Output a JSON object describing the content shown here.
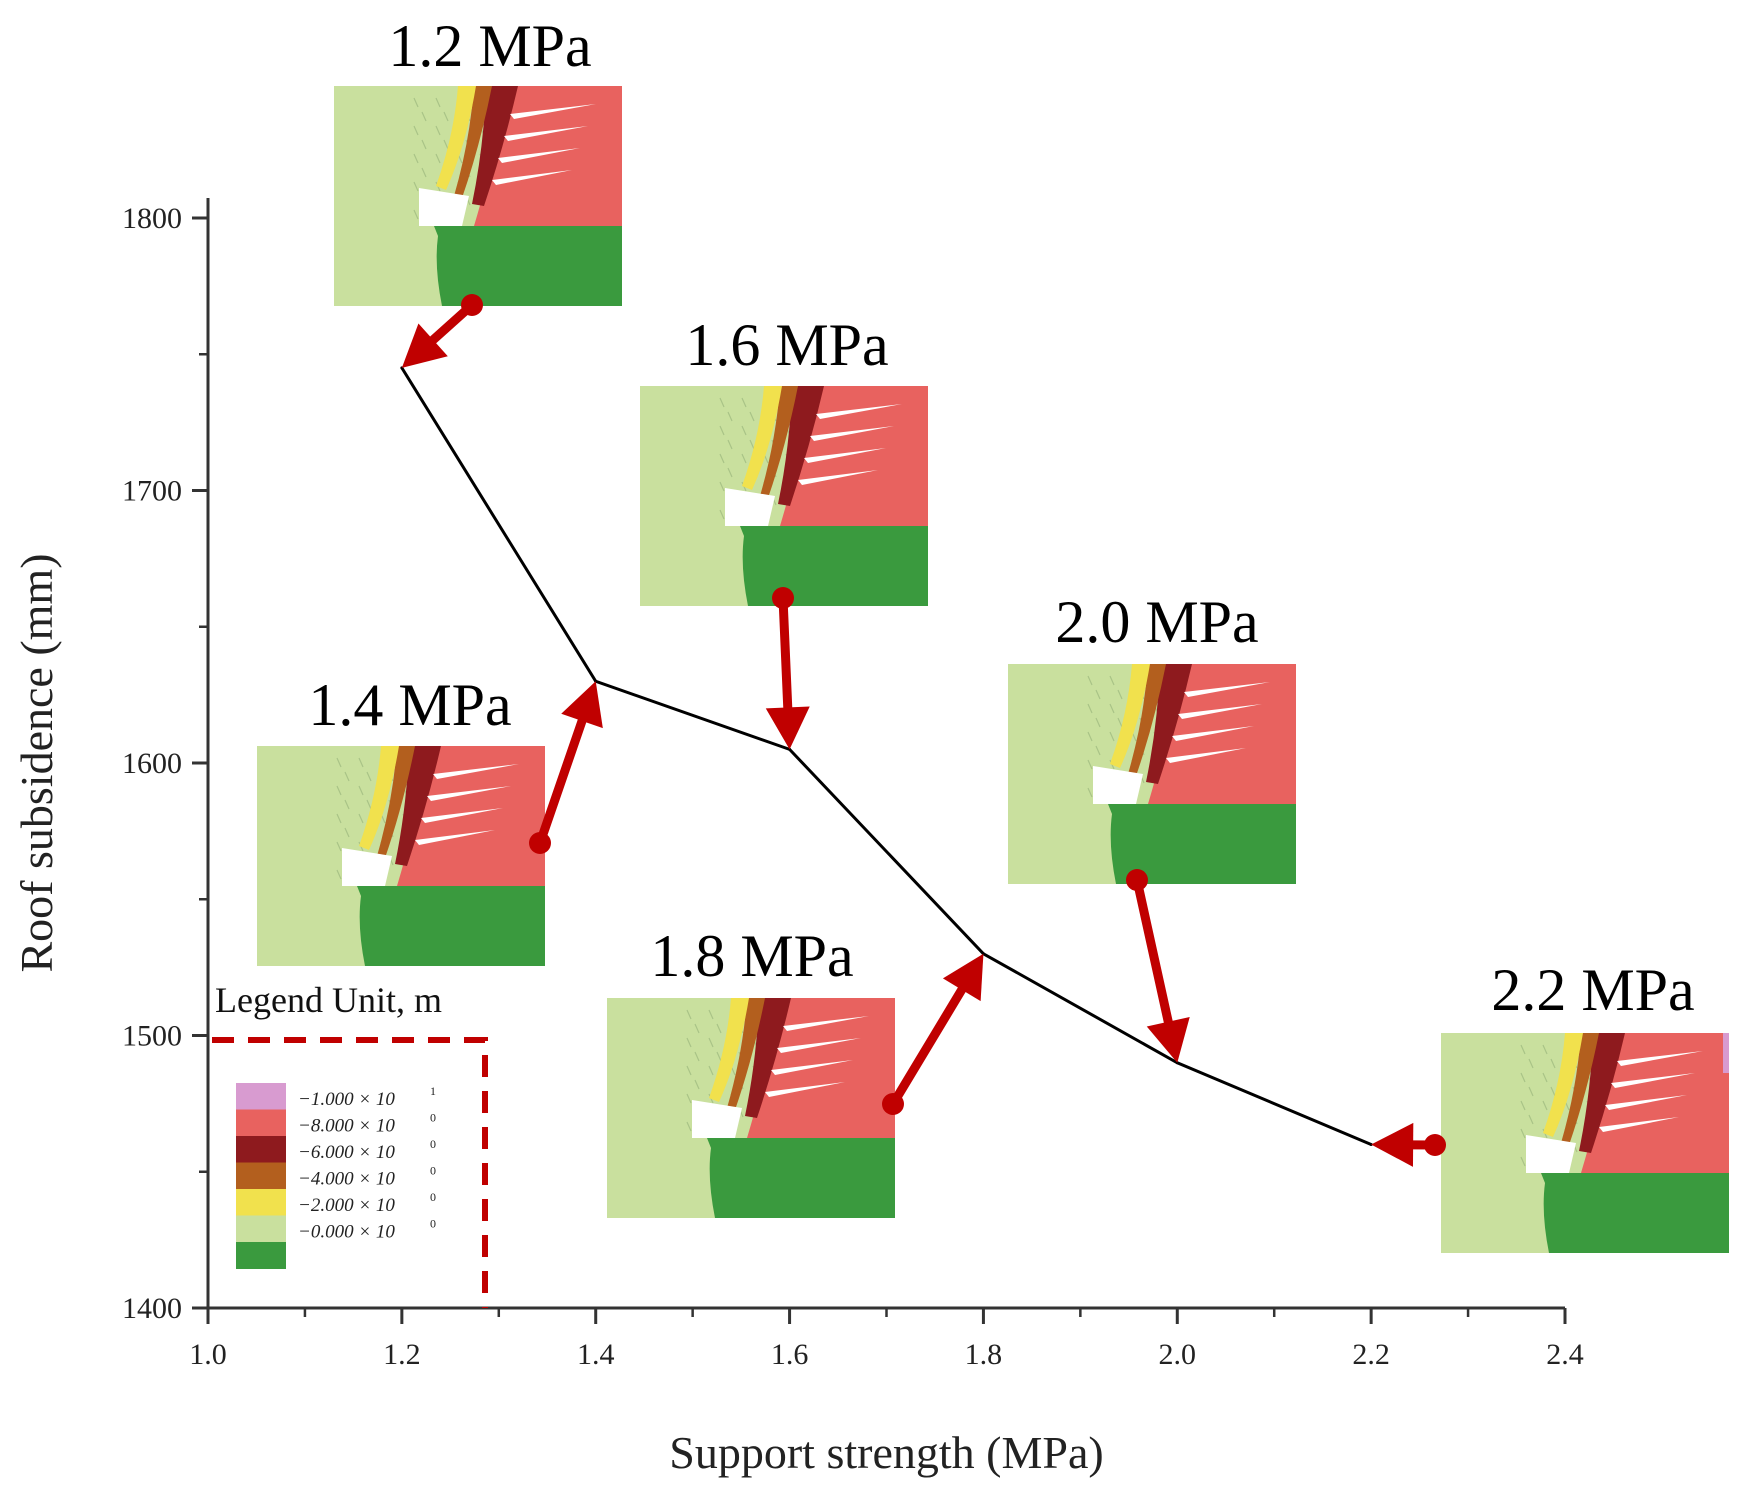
{
  "chart_data": {
    "type": "line",
    "title": "",
    "xlabel": "Support strength (MPa)",
    "ylabel": "Roof subsidence (mm)",
    "xlim": [
      1.0,
      2.4
    ],
    "ylim": [
      1400,
      1800
    ],
    "x_ticks": [
      "1.0",
      "1.2",
      "1.4",
      "1.6",
      "1.8",
      "2.0",
      "2.2",
      "2.4"
    ],
    "y_ticks": [
      "1400",
      "1500",
      "1600",
      "1700",
      "1800"
    ],
    "series": [
      {
        "name": "Roof subsidence",
        "x": [
          1.2,
          1.4,
          1.6,
          1.8,
          2.0,
          2.2
        ],
        "y": [
          1745,
          1630,
          1605,
          1530,
          1490,
          1460
        ]
      }
    ],
    "simulation_insets": [
      {
        "label": "1.2 MPa",
        "x": 1.2,
        "y": 1745
      },
      {
        "label": "1.4 MPa",
        "x": 1.4,
        "y": 1630
      },
      {
        "label": "1.6 MPa",
        "x": 1.6,
        "y": 1605
      },
      {
        "label": "1.8 MPa",
        "x": 1.8,
        "y": 1530
      },
      {
        "label": "2.0 MPa",
        "x": 2.0,
        "y": 1490
      },
      {
        "label": "2.2 MPa",
        "x": 2.2,
        "y": 1460
      }
    ],
    "legend": {
      "title": "Legend Unit, m",
      "entries": [
        {
          "label": "−1.000 × 10",
          "exp": "1",
          "color": "#d89bd0"
        },
        {
          "label": "−8.000 × 10",
          "exp": "0",
          "color": "#e8625f"
        },
        {
          "label": "−6.000 × 10",
          "exp": "0",
          "color": "#8e1a1e"
        },
        {
          "label": "−4.000 × 10",
          "exp": "0",
          "color": "#b35f1e"
        },
        {
          "label": "−2.000 × 10",
          "exp": "0",
          "color": "#f1e14d"
        },
        {
          "label": "−0.000 × 10",
          "exp": "0",
          "color": "#c9e09e"
        },
        {
          "label": "",
          "exp": "",
          "color": "#3a9a3e"
        }
      ]
    },
    "colors": {
      "line": "#000000",
      "arrow": "#c00000",
      "axis": "#333333"
    }
  }
}
